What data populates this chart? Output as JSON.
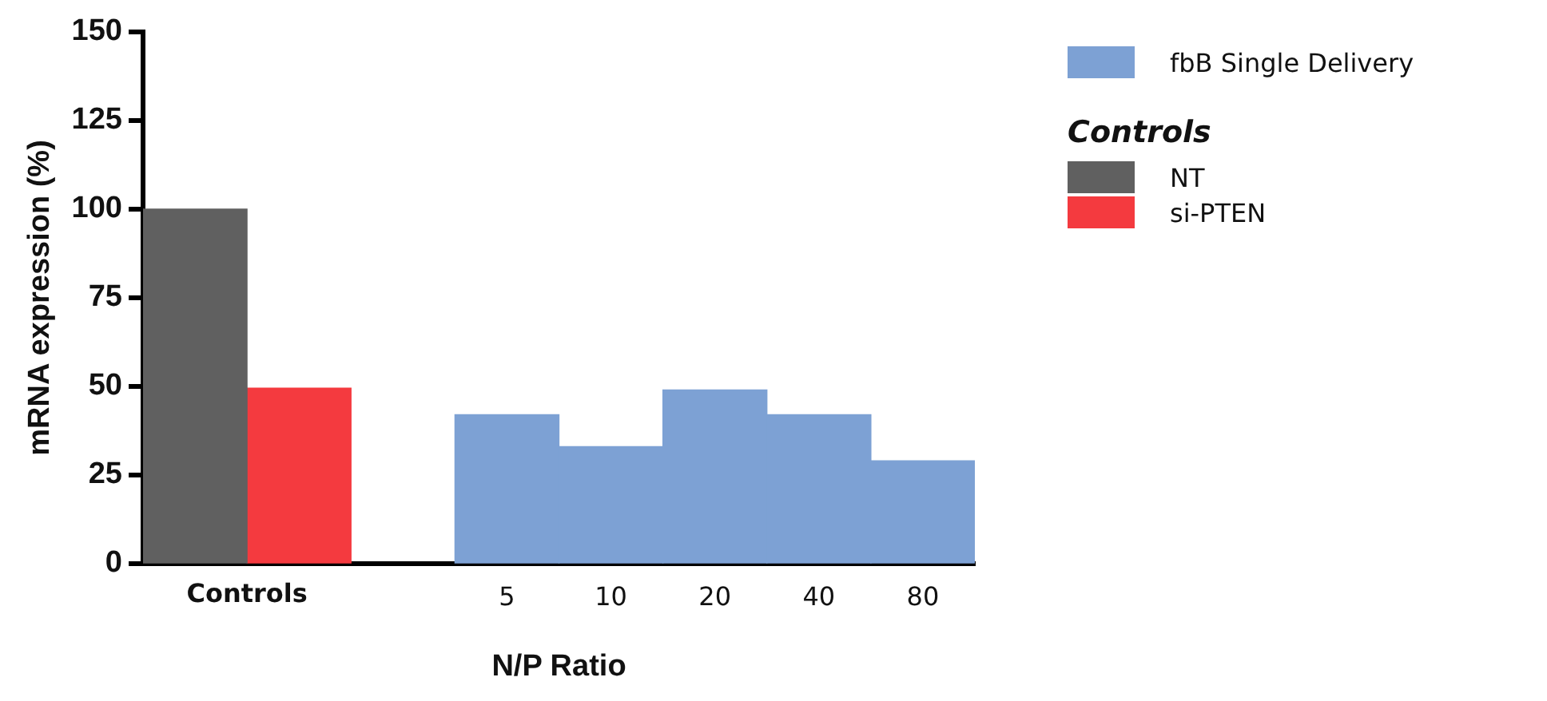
{
  "chart_data": {
    "type": "bar",
    "ylabel": "mRNA expression (%)",
    "xlabel": "N/P Ratio",
    "legend_title": "Controls",
    "legend": "top right",
    "grid": false,
    "categories": [
      null,
      null,
      null,
      "5",
      "10",
      "20",
      "40",
      "80"
    ],
    "series": [
      {
        "name": "fbB Single Delivery",
        "color": "#7da1d4",
        "values": [
          null,
          null,
          null,
          42,
          33,
          49,
          42,
          29
        ]
      },
      {
        "name": "NT",
        "color": "#606060",
        "values": [
          100,
          null,
          null,
          null,
          null,
          null,
          null,
          null
        ]
      },
      {
        "name": "si-PTEN",
        "color": "#f43a3f",
        "values": [
          null,
          49.5,
          null,
          null,
          null,
          null,
          null,
          null
        ]
      }
    ],
    "annotations": [
      "Controls"
    ],
    "ylim": [
      0,
      150
    ],
    "yticks": [
      0,
      25,
      50,
      75,
      100,
      125,
      150
    ]
  }
}
